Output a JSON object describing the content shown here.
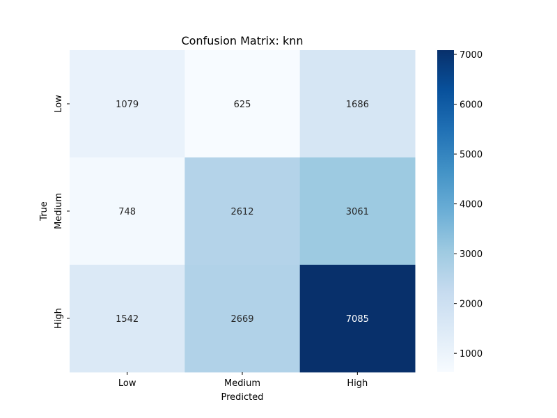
{
  "chart_data": {
    "type": "heatmap",
    "title": "Confusion Matrix: knn",
    "xlabel": "Predicted",
    "ylabel": "True",
    "x_categories": [
      "Low",
      "Medium",
      "High"
    ],
    "y_categories": [
      "Low",
      "Medium",
      "High"
    ],
    "values": [
      [
        1079,
        625,
        1686
      ],
      [
        748,
        2612,
        3061
      ],
      [
        1542,
        2669,
        7085
      ]
    ],
    "colormap": "Blues",
    "colorbar": {
      "min": 625,
      "max": 7085,
      "ticks": [
        1000,
        2000,
        3000,
        4000,
        5000,
        6000,
        7000
      ]
    },
    "annotations": true,
    "grid": false
  }
}
